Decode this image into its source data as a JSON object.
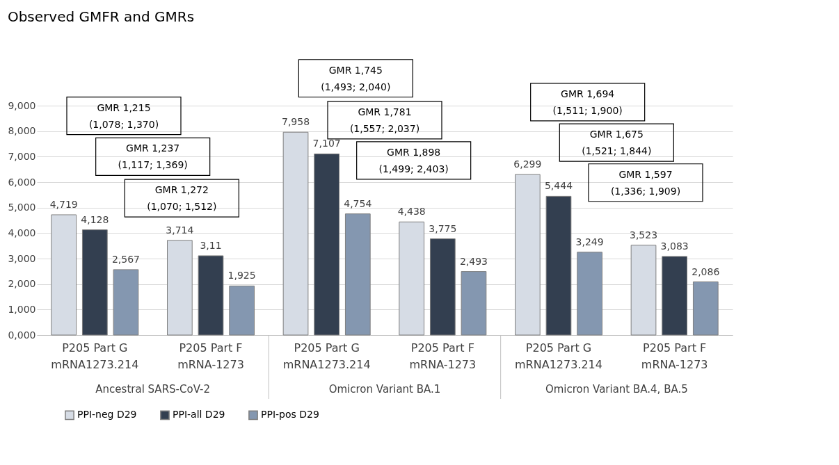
{
  "chart_data": {
    "type": "bar",
    "title": "Observed GMFR and GMRs",
    "categories": [
      "P205 Part G mRNA1273.214",
      "P205 Part F mRNA-1273",
      "P205 Part G mRNA1273.214",
      "P205 Part F mRNA-1273",
      "P205 Part G mRNA1273.214",
      "P205 Part F mRNA-1273"
    ],
    "series": [
      {
        "name": "PPI-neg D29",
        "color": "#d6dce5",
        "values": [
          4.719,
          3.714,
          7.958,
          4.438,
          6.299,
          3.523
        ],
        "value_labels": [
          "4,719",
          "3,714",
          "7,958",
          "4,438",
          "6,299",
          "3,523"
        ]
      },
      {
        "name": "PPI-all D29",
        "color": "#333f50",
        "values": [
          4.128,
          3.11,
          7.107,
          3.775,
          5.444,
          3.083
        ],
        "value_labels": [
          "4,128",
          "3,11",
          "7,107",
          "3,775",
          "5,444",
          "3,083"
        ]
      },
      {
        "name": "PPI-pos D29",
        "color": "#8497b0",
        "values": [
          2.567,
          1.925,
          4.754,
          2.493,
          3.249,
          2.086
        ],
        "value_labels": [
          "2,567",
          "1,925",
          "4,754",
          "2,493",
          "3,249",
          "2,086"
        ]
      }
    ],
    "ylim": [
      0,
      9
    ],
    "yticks": [
      {
        "value": 0,
        "label": "0,000"
      },
      {
        "value": 1,
        "label": "1,000"
      },
      {
        "value": 2,
        "label": "2,000"
      },
      {
        "value": 3,
        "label": "3,000"
      },
      {
        "value": 4,
        "label": "4,000"
      },
      {
        "value": 5,
        "label": "5,000"
      },
      {
        "value": 6,
        "label": "6,000"
      },
      {
        "value": 7,
        "label": "7,000"
      },
      {
        "value": 8,
        "label": "8,000"
      },
      {
        "value": 9,
        "label": "9,000"
      }
    ],
    "grid": "y",
    "legend": "bottom",
    "annotations": [
      "GMR 1,215\n(1,078; 1,370)",
      "GMR 1,237\n(1,117; 1,369)",
      "GMR 1,272\n(1,070; 1,512)",
      "GMR 1,745\n(1,493; 2,040)",
      "GMR 1,781\n(1,557; 2,037)",
      "GMR 1,898\n(1,499; 2,403)",
      "GMR 1,694\n(1,511; 1,900)",
      "GMR 1,675\n(1,521; 1,844)",
      "GMR 1,597\n(1,336; 1,909)",
      "Ancestral SARS-CoV-2",
      "Omicron Variant BA.1",
      "Omicron Variant BA.4, BA.5"
    ]
  }
}
